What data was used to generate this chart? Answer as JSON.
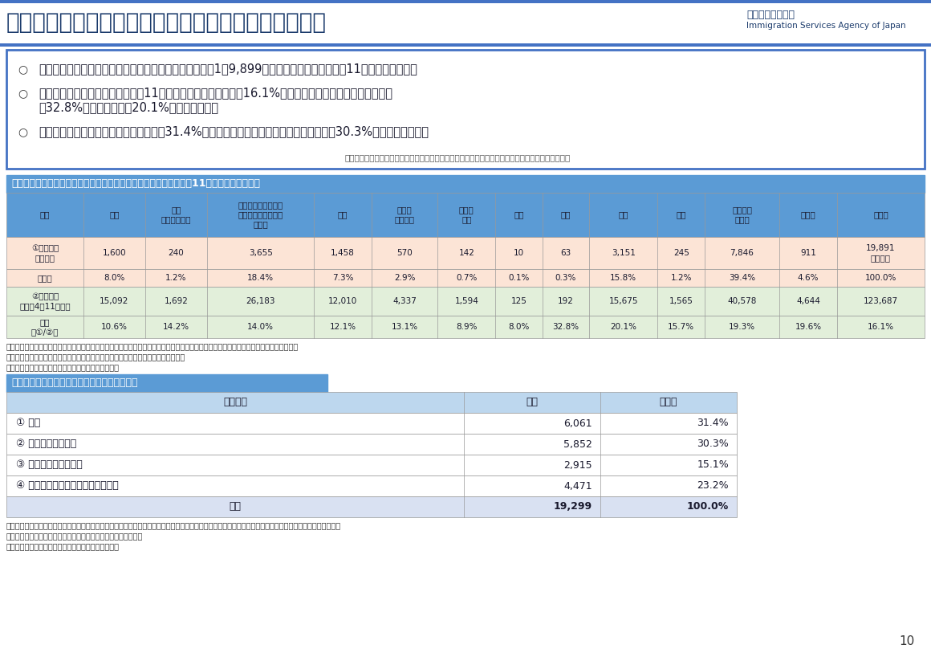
{
  "title": "特定技能外国人の自己都合による離職状況（暫定値）",
  "agency_name": "出入国在留管理庁",
  "agency_en": "Immigration Services Agency of Japan",
  "bullet1": "特定技能外国人の自己都合による離職者数（注１）は、1万9,899人（制度施行から令和４年11月まで）である。",
  "bullet2a": "特定技能在留外国人数（令和４年11月末時点）における割合は16.1%となっており、分野別では「宿泊」",
  "bullet2b": "（32.8%）、「農業」（20.1%）の順で高い。",
  "bullet3": "自己都合による離職後の状況は、帰国（31.4%）が最も多く、次いで特定技能での転職（30.3%）となっている。",
  "footnote_bullet": "（注１）外国人本人の都合により離職したとして届出があったものであり、行方不明等は含まない。",
  "table1_title": "＜表１＞分野別の自己都合による離職者数（制度施行から令和４年11月までの延べ人数）",
  "table1_headers": [
    "分野",
    "介護",
    "ビル\nクリーニング",
    "素形材・産業機械・\n電気・電子情報関連\n製造業",
    "建設",
    "造船・\n船用工業",
    "自動車\n整備",
    "航空",
    "宿泊",
    "農業",
    "漁業",
    "飲食料品\n製造業",
    "外食業",
    "全分野"
  ],
  "table1_row1_label": "①離職者数\n（注２）",
  "table1_row1_values": [
    "1,600",
    "240",
    "3,655",
    "1,458",
    "570",
    "142",
    "10",
    "63",
    "3,151",
    "245",
    "7,846",
    "911",
    "19,891\n（注３）"
  ],
  "table1_row2_label": "構成比",
  "table1_row2_values": [
    "8.0%",
    "1.2%",
    "18.4%",
    "7.3%",
    "2.9%",
    "0.7%",
    "0.1%",
    "0.3%",
    "15.8%",
    "1.2%",
    "39.4%",
    "4.6%",
    "100.0%"
  ],
  "table1_row3_label": "②在留者数\n（令和4年11月末）",
  "table1_row3_values": [
    "15,092",
    "1,692",
    "26,183",
    "12,010",
    "4,337",
    "1,594",
    "125",
    "192",
    "15,675",
    "1,565",
    "40,578",
    "4,644",
    "123,687"
  ],
  "table1_row4_label": "割合\n（①/②）",
  "table1_row4_values": [
    "10.6%",
    "14.2%",
    "14.0%",
    "12.1%",
    "13.1%",
    "8.9%",
    "8.0%",
    "32.8%",
    "20.1%",
    "15.7%",
    "19.3%",
    "19.6%",
    "16.1%"
  ],
  "table1_note2": "（注２）特定技能所属機関からの地方入管に対する随時の届出の内容（外国人の自己都合を届出事由とするもの）を基に集計した延べ人数",
  "table1_note3": "（注３）集計の際に分野を特定できない者があるため、上枠の総数とは一致しない。",
  "table1_note4": "（注４）表中の構成比は小数点第二位以下を四捨五入",
  "table2_title": "＜表２＞自己都合による退職後の状況（注５）",
  "table2_col_headers": [
    "在留状況",
    "人数",
    "構成比"
  ],
  "table2_rows": [
    [
      "① 帰国",
      "6,061",
      "31.4%"
    ],
    [
      "② 特定技能での転職",
      "5,852",
      "30.3%"
    ],
    [
      "③ 別の在留資格へ変更",
      "2,915",
      "15.1%"
    ],
    [
      "④ 上記のいずれにも非該当（注６）",
      "4,471",
      "23.2%"
    ]
  ],
  "table2_total": [
    "合計",
    "19,299",
    "100.0%"
  ],
  "table2_note5": "（注５）自己都合による離職後の在留状況をフォローアップしたもの。届出後の対応により復職した者を除くなどしているため、表１の総数とは一致しない。",
  "table2_note6": "（注６）求職活動中、在留資格変更許可申請中などが含まれる。",
  "table2_note7": "（注７）表中の構成比は小数点第二位以下を四捨五入",
  "page_number": "10",
  "col_bg_header": "#5b9bd5",
  "col_bg_row1": "#fce4d6",
  "col_bg_row2": "#fce4d6",
  "col_bg_row3": "#e2efda",
  "col_bg_row4": "#e2efda",
  "t2_header_bg": "#bdd7ee",
  "t2_total_bg": "#d9e1f2",
  "title_bar_bg": "#1a3a6b",
  "accent_blue": "#4472c4",
  "bullet_border": "#4472c4"
}
